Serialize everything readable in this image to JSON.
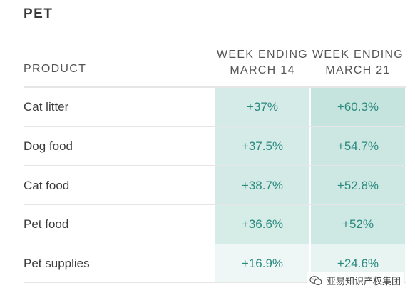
{
  "section": {
    "title": "PET"
  },
  "header": {
    "product": "PRODUCT",
    "columns": [
      {
        "line1": "WEEK ENDING",
        "line2": "MARCH 14"
      },
      {
        "line1": "WEEK ENDING",
        "line2": "MARCH 21"
      }
    ]
  },
  "rows": [
    {
      "product": "Cat litter",
      "values": [
        "+37%",
        "+60.3%"
      ],
      "tint": [
        0.73,
        1.0
      ]
    },
    {
      "product": "Dog food",
      "values": [
        "+37.5%",
        "+54.7%"
      ],
      "tint": [
        0.74,
        0.9
      ]
    },
    {
      "product": "Cat food",
      "values": [
        "+38.7%",
        "+52.8%"
      ],
      "tint": [
        0.76,
        0.87
      ]
    },
    {
      "product": "Pet food",
      "values": [
        "+36.6%",
        "+52%"
      ],
      "tint": [
        0.72,
        0.86
      ]
    },
    {
      "product": "Pet supplies",
      "values": [
        "+16.9%",
        "+24.6%"
      ],
      "tint": [
        0.28,
        0.42
      ]
    }
  ],
  "colors": {
    "accent_text": "#2a8a7f",
    "cell_max": "#c6e4de",
    "cell_min": "#ffffff"
  },
  "watermark": {
    "icon": "wechat-icon",
    "text": "亚易知识产权集团"
  }
}
